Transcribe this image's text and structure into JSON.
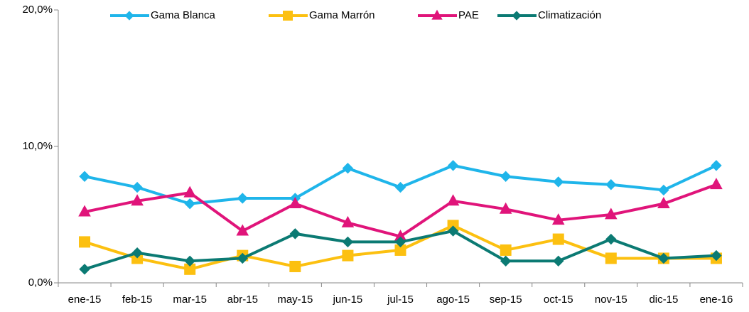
{
  "chart_data": {
    "type": "line",
    "categories": [
      "ene-15",
      "feb-15",
      "mar-15",
      "abr-15",
      "may-15",
      "jun-15",
      "jul-15",
      "ago-15",
      "sep-15",
      "oct-15",
      "nov-15",
      "dic-15",
      "ene-16"
    ],
    "series": [
      {
        "name": "Gama Blanca",
        "color": "#1fb5ea",
        "marker": "diamond",
        "values": [
          7.8,
          7.0,
          5.8,
          6.2,
          6.2,
          8.4,
          7.0,
          8.6,
          7.8,
          7.4,
          7.2,
          6.8,
          8.6
        ]
      },
      {
        "name": "Gama Marrón",
        "color": "#fcc010",
        "marker": "square",
        "values": [
          3.0,
          1.8,
          1.0,
          2.0,
          1.2,
          2.0,
          2.4,
          4.2,
          2.4,
          3.2,
          1.8,
          1.8,
          1.8
        ]
      },
      {
        "name": "PAE",
        "color": "#e0147a",
        "marker": "triangle",
        "values": [
          5.2,
          6.0,
          6.6,
          3.8,
          5.8,
          4.4,
          3.4,
          6.0,
          5.4,
          4.6,
          5.0,
          5.8,
          7.2
        ]
      },
      {
        "name": "Climatización",
        "color": "#0b7a73",
        "marker": "diamond",
        "values": [
          1.0,
          2.2,
          1.6,
          1.8,
          3.6,
          3.0,
          3.0,
          3.8,
          1.6,
          1.6,
          3.2,
          1.8,
          2.0
        ]
      }
    ],
    "ylim": [
      0,
      20
    ],
    "yticks": [
      {
        "value": 0,
        "label": "0,0%"
      },
      {
        "value": 10,
        "label": "10,0%"
      },
      {
        "value": 20,
        "label": "20,0%"
      }
    ],
    "grid": false,
    "legend": "top"
  }
}
